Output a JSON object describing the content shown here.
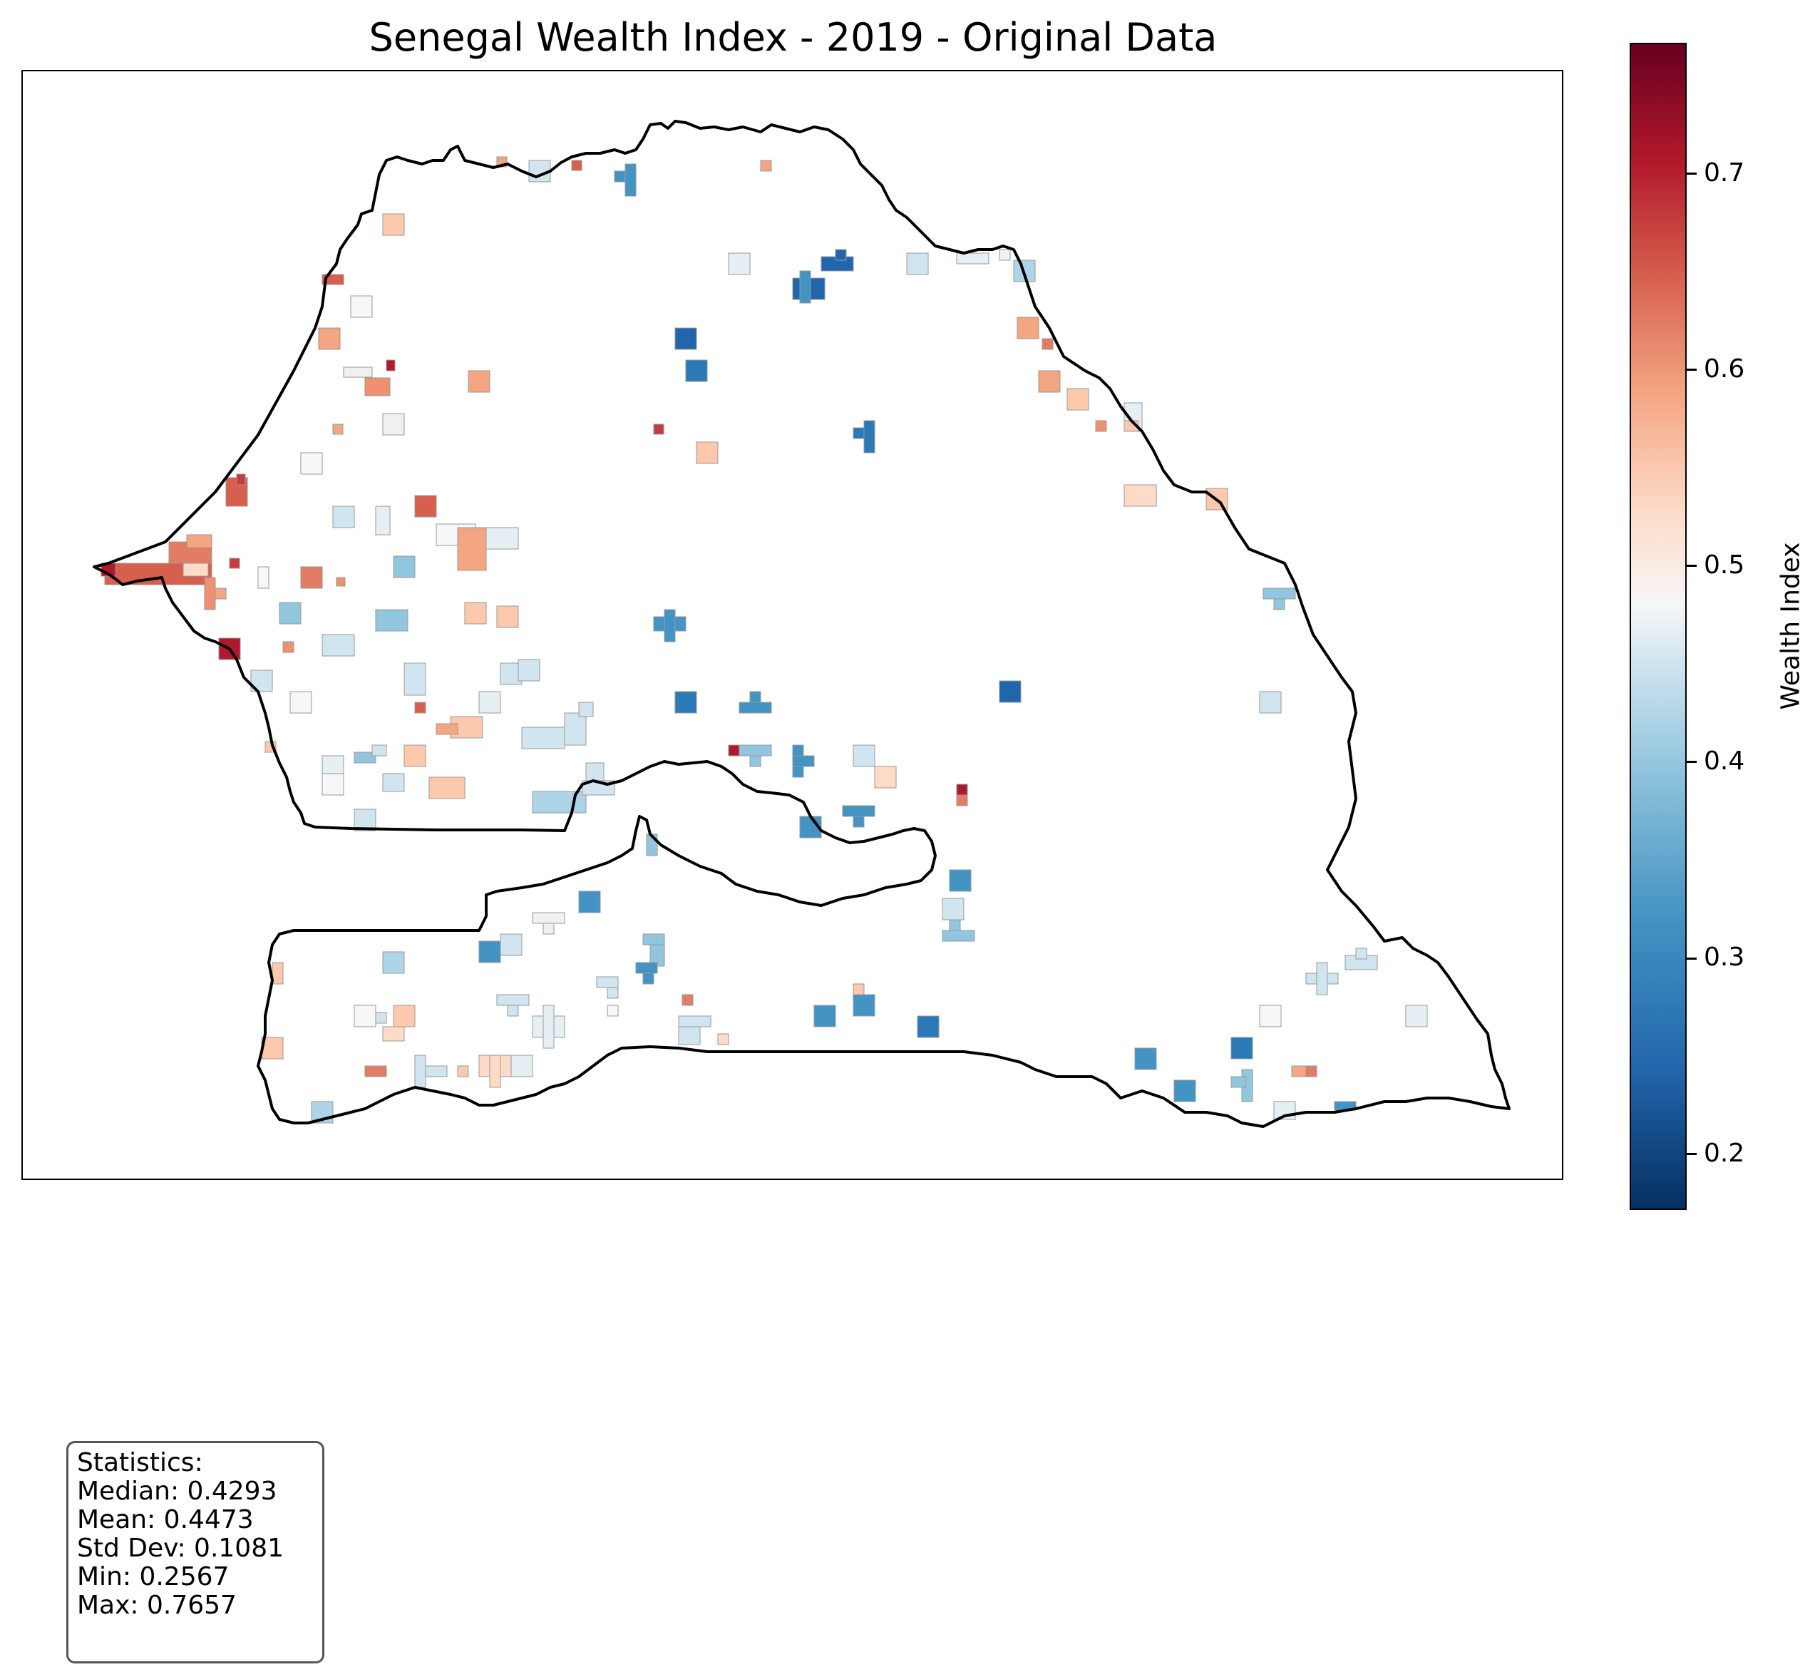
{
  "title": "Senegal Wealth Index - 2019 - Original Data",
  "colorbar": {
    "label": "Wealth Index",
    "colormap": "RdBu_r",
    "range": [
      0.17,
      0.765
    ],
    "ticks": [
      "0.2",
      "0.3",
      "0.4",
      "0.5",
      "0.6",
      "0.7"
    ]
  },
  "stats": {
    "heading": "Statistics:",
    "median": "Median: 0.4293",
    "mean": "Mean: 0.4473",
    "std": "Std Dev: 0.1081",
    "min": "Min: 0.2567",
    "max": "Max: 0.7657"
  },
  "map": {
    "region": "Senegal",
    "border_color": "#000000"
  }
}
